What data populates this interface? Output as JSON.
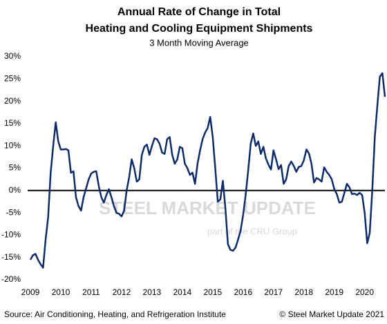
{
  "chart_data": {
    "type": "line",
    "title": [
      "Annual Rate of Change in Total",
      "Heating and Cooling Equipment Shipments"
    ],
    "subtitle": "3 Month Moving Average",
    "source": "Source: Air Conditioning, Heating, and Refrigeration Institute",
    "copyright": "© Steel Market Update 2021",
    "watermark": [
      "STEEL MARKET UPDATE",
      "part of the CRU Group"
    ],
    "categories": [
      "2009",
      null,
      null,
      null,
      null,
      null,
      null,
      null,
      null,
      null,
      null,
      null,
      "2010",
      null,
      null,
      null,
      null,
      null,
      null,
      null,
      null,
      null,
      null,
      null,
      "2011",
      null,
      null,
      null,
      null,
      null,
      null,
      null,
      null,
      null,
      null,
      null,
      "2012",
      null,
      null,
      null,
      null,
      null,
      null,
      null,
      null,
      null,
      null,
      null,
      "2013",
      null,
      null,
      null,
      null,
      null,
      null,
      null,
      null,
      null,
      null,
      null,
      "2014",
      null,
      null,
      null,
      null,
      null,
      null,
      null,
      null,
      null,
      null,
      null,
      "2015",
      null,
      null,
      null,
      null,
      null,
      null,
      null,
      null,
      null,
      null,
      null,
      "2016",
      null,
      null,
      null,
      null,
      null,
      null,
      null,
      null,
      null,
      null,
      null,
      "2017",
      null,
      null,
      null,
      null,
      null,
      null,
      null,
      null,
      null,
      null,
      null,
      "2018",
      null,
      null,
      null,
      null,
      null,
      null,
      null,
      null,
      null,
      null,
      null,
      "2019",
      null,
      null,
      null,
      null,
      null,
      null,
      null,
      null,
      null,
      null,
      null,
      "2020",
      null,
      null,
      null,
      null,
      null,
      null,
      null,
      null
    ],
    "values": [
      -15.5,
      -14.5,
      -14.2,
      -15.5,
      -16.5,
      -17.3,
      -11,
      -6,
      4,
      10,
      15.3,
      11,
      9.2,
      9.2,
      9.3,
      9.0,
      4,
      4.3,
      -1.5,
      -3.5,
      -4.5,
      -1.5,
      0.5,
      2.5,
      3.8,
      4.2,
      4.3,
      1,
      -1.5,
      -2.7,
      -1,
      0.3,
      -1.5,
      -3.5,
      -5,
      -5.2,
      -5.8,
      -4.5,
      0,
      3,
      7,
      5,
      2,
      2.5,
      8,
      9.8,
      10.3,
      8,
      10,
      11.7,
      11.5,
      10.5,
      8.5,
      8.2,
      11.5,
      12,
      8,
      6,
      7,
      9.8,
      9.5,
      6,
      5,
      3.5,
      4,
      1.5,
      6,
      9,
      11.5,
      13,
      14,
      16.5,
      12,
      5,
      -2.5,
      -2,
      2.2,
      -4,
      -12,
      -13.3,
      -13.5,
      -12.8,
      -11,
      -9,
      -5.5,
      -1,
      4.5,
      10.5,
      12.8,
      10,
      11,
      8.2,
      9.8,
      7.2,
      5.8,
      4.7,
      9,
      7,
      4.8,
      5.7,
      1.5,
      2.5,
      5.5,
      6.5,
      5.5,
      4.2,
      5.3,
      5.5,
      6.8,
      9.2,
      8.3,
      6,
      1.8,
      2.8,
      2.5,
      2,
      5.2,
      4.2,
      3.5,
      2.5,
      0.3,
      -0.8,
      -2.7,
      -2.5,
      -0.5,
      1.5,
      0.7,
      -0.8,
      -0.7,
      -1,
      -0.5,
      -1,
      -5,
      -11.8,
      -9.5,
      0,
      12,
      19,
      25.5,
      26.3,
      21
    ],
    "color": "#0d2b6b",
    "ylim": [
      -20,
      30
    ],
    "yticks": [
      {
        "value": 30,
        "label": "30%"
      },
      {
        "value": 25,
        "label": "25%"
      },
      {
        "value": 20,
        "label": "20%"
      },
      {
        "value": 15,
        "label": "15%"
      },
      {
        "value": 10,
        "label": "10%"
      },
      {
        "value": 5,
        "label": "5%"
      },
      {
        "value": 0,
        "label": "0%"
      },
      {
        "value": -5,
        "label": "-5%"
      },
      {
        "value": -10,
        "label": "-10%"
      },
      {
        "value": -15,
        "label": "-15%"
      },
      {
        "value": -20,
        "label": "-20%"
      }
    ],
    "grid": false
  }
}
